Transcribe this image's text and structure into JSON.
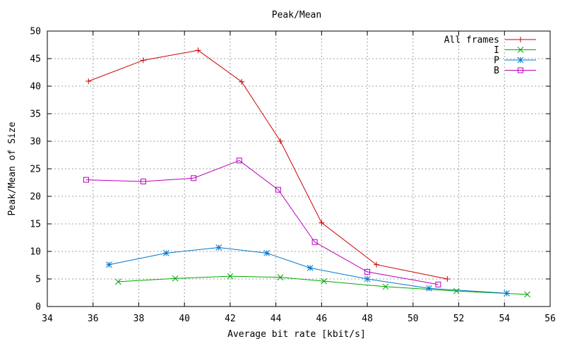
{
  "chart_data": {
    "type": "line",
    "title": "Peak/Mean",
    "xlabel": "Average bit rate [kbit/s]",
    "ylabel": "Peak/Mean of Size",
    "xlim": [
      34,
      56
    ],
    "ylim": [
      0,
      50
    ],
    "xticks": [
      34,
      36,
      38,
      40,
      42,
      44,
      46,
      48,
      50,
      52,
      54,
      56
    ],
    "yticks": [
      0,
      5,
      10,
      15,
      20,
      25,
      30,
      35,
      40,
      45,
      50
    ],
    "grid": true,
    "legend_position": "top-right",
    "series": [
      {
        "name": "All frames",
        "color": "#cc0000",
        "marker": "plus",
        "x": [
          35.8,
          38.2,
          40.6,
          42.5,
          44.2,
          46.0,
          48.4,
          51.5
        ],
        "y": [
          40.9,
          44.7,
          46.5,
          40.8,
          30.0,
          15.2,
          7.6,
          5.0
        ]
      },
      {
        "name": "I",
        "color": "#00aa00",
        "marker": "cross",
        "x": [
          37.1,
          39.6,
          42.0,
          44.2,
          46.1,
          48.8,
          51.9,
          55.0
        ],
        "y": [
          4.5,
          5.1,
          5.5,
          5.3,
          4.6,
          3.6,
          2.8,
          2.2
        ]
      },
      {
        "name": "P",
        "color": "#0077cc",
        "marker": "star",
        "x": [
          36.7,
          39.2,
          41.5,
          43.6,
          45.5,
          48.0,
          50.7,
          54.1
        ],
        "y": [
          7.6,
          9.7,
          10.7,
          9.7,
          7.0,
          5.0,
          3.3,
          2.4
        ]
      },
      {
        "name": "B",
        "color": "#bb00bb",
        "marker": "square",
        "x": [
          35.7,
          38.2,
          40.4,
          42.4,
          44.1,
          45.7,
          48.0,
          51.1
        ],
        "y": [
          23.0,
          22.7,
          23.3,
          26.5,
          21.2,
          11.7,
          6.3,
          4.0
        ]
      }
    ]
  }
}
